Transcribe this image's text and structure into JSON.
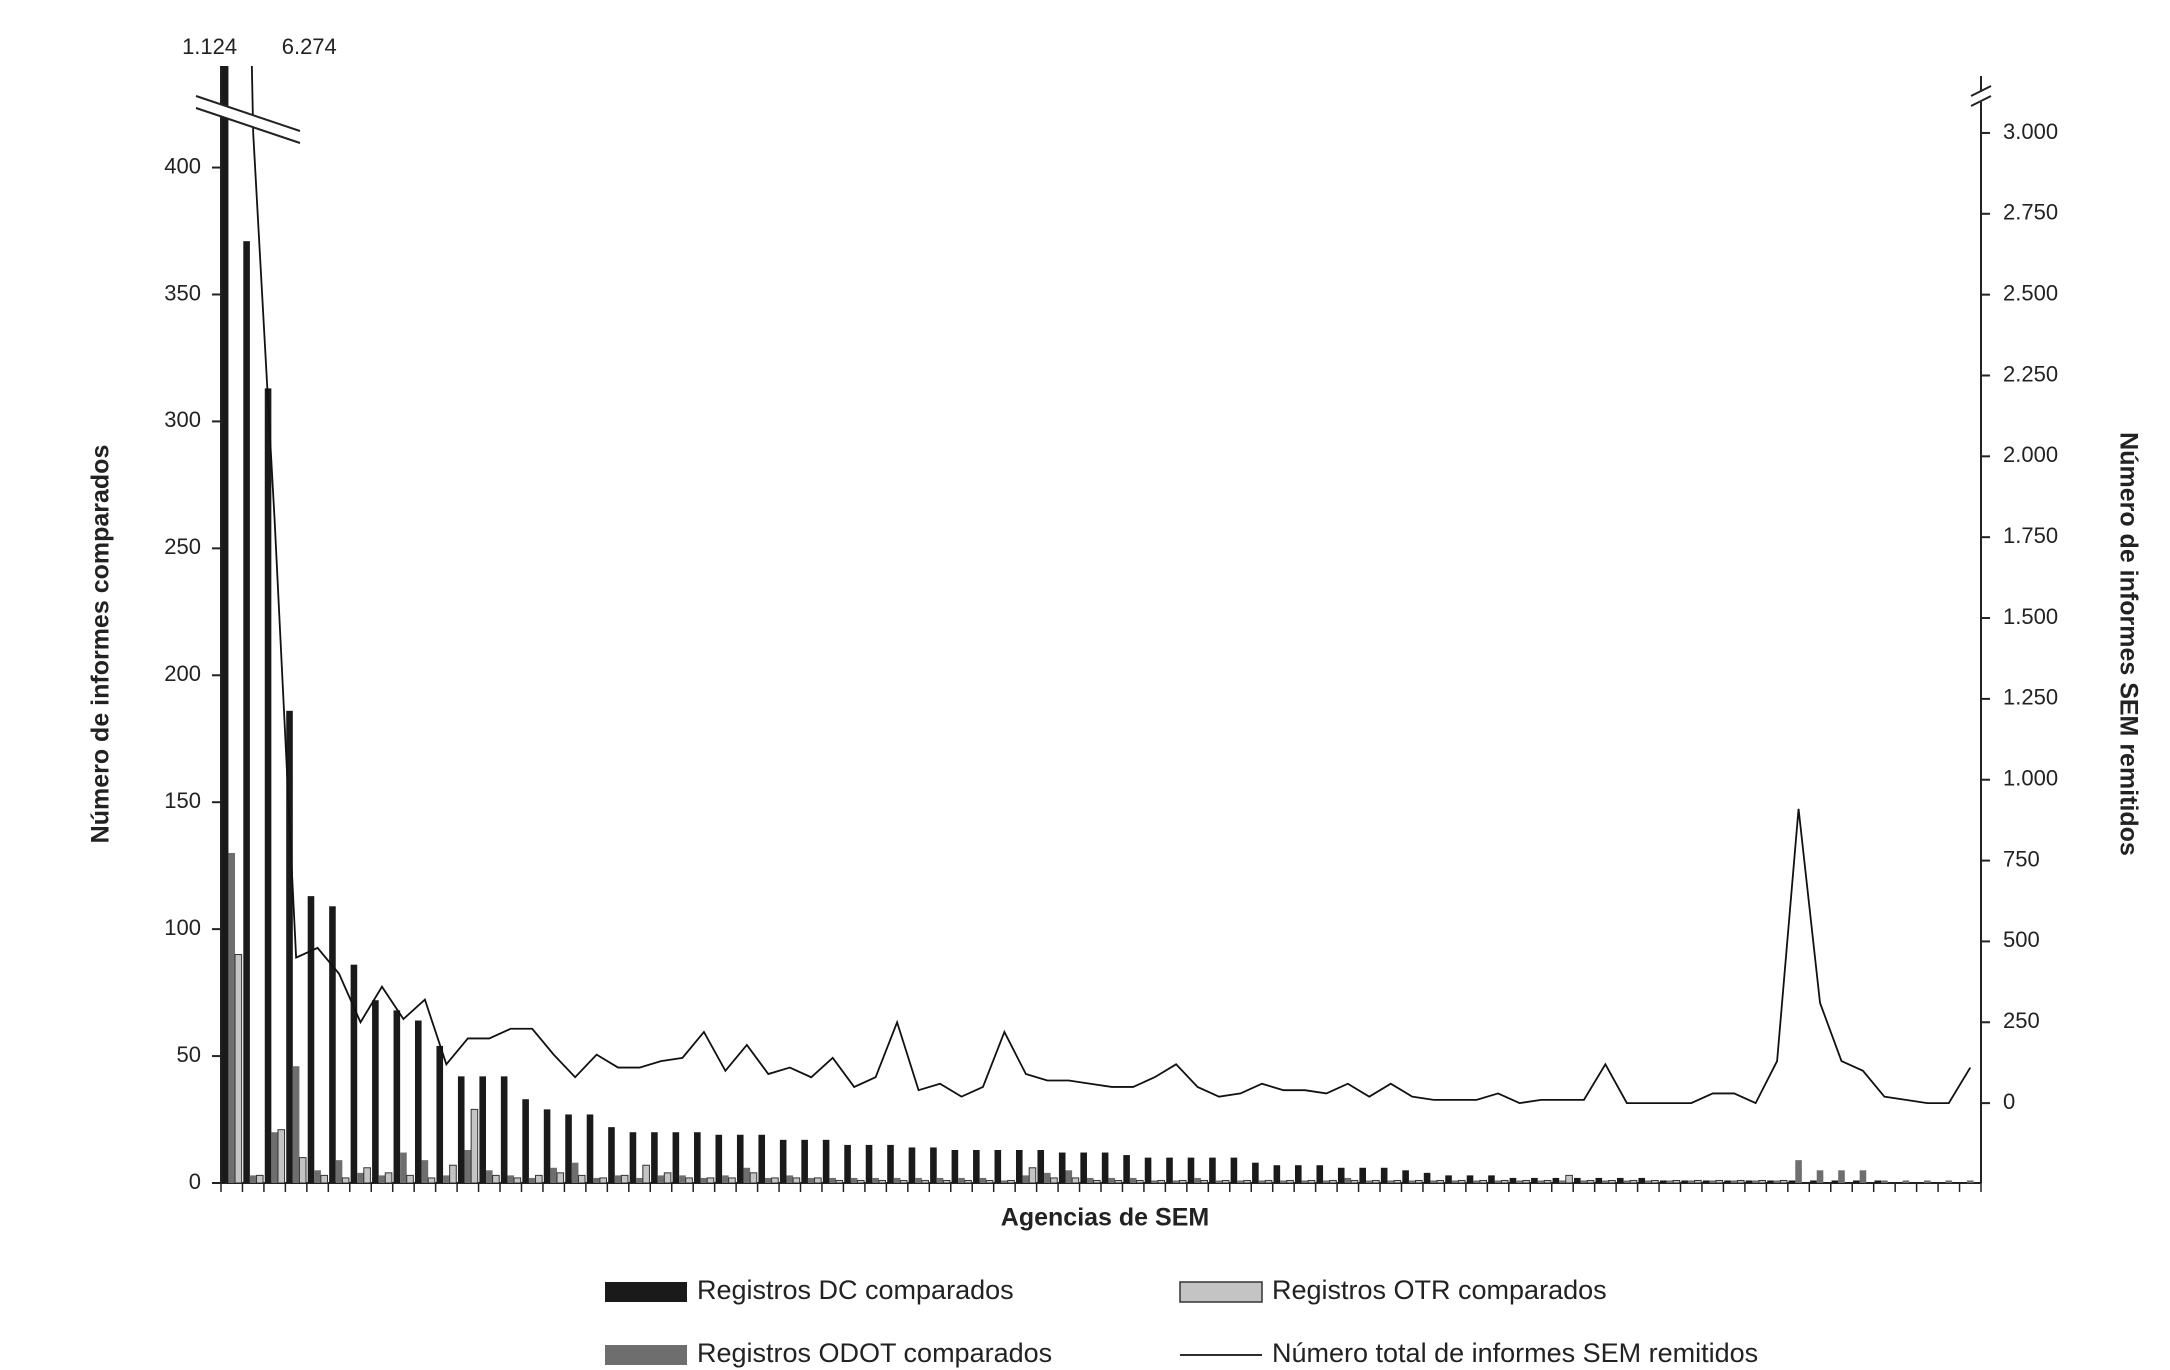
{
  "chart_data": {
    "type": "bar",
    "x_label": "Agencias de SEM",
    "y_label": "Número de informes comparados",
    "y2_label": "Número de informes SEM remitidos",
    "categories": [
      null,
      null,
      null,
      null,
      null,
      null,
      null,
      null,
      null,
      null,
      null,
      null,
      null,
      null,
      null,
      null,
      null,
      null,
      null,
      null,
      null,
      null,
      null,
      null,
      null,
      null,
      null,
      null,
      null,
      null,
      null,
      null,
      null,
      null,
      null,
      null,
      null,
      null,
      null,
      null,
      null,
      null,
      null,
      null,
      null,
      null,
      null,
      null,
      null,
      null,
      null,
      null,
      null,
      null,
      null,
      null,
      null,
      null,
      null,
      null,
      null,
      null,
      null,
      null,
      null,
      null,
      null,
      null,
      null,
      null,
      null,
      null,
      null,
      null,
      null,
      null,
      null,
      null,
      null,
      null,
      null,
      null
    ],
    "ylim": [
      0,
      440
    ],
    "yticks": [
      0,
      50,
      100,
      150,
      200,
      250,
      300,
      350,
      400
    ],
    "y2lim": [
      -247,
      3207
    ],
    "y2ticks": [
      0,
      250,
      500,
      750,
      {
        "value": 1000,
        "label": "1.000"
      },
      {
        "value": 1250,
        "label": "1.250"
      },
      {
        "value": 1500,
        "label": "1.500"
      },
      {
        "value": 1750,
        "label": "1.750"
      },
      {
        "value": 2000,
        "label": "2.000"
      },
      {
        "value": 2250,
        "label": "2.250"
      },
      {
        "value": 2500,
        "label": "2.500"
      },
      {
        "value": 2750,
        "label": "2.750"
      },
      {
        "value": 3000,
        "label": "3.000"
      }
    ],
    "grid": false,
    "series": [
      {
        "name": "Registros DC comparados",
        "color": "#1a1a1a",
        "type": "bar",
        "values": [
          1124,
          371,
          313,
          186,
          113,
          109,
          86,
          72,
          68,
          64,
          54,
          42,
          42,
          42,
          33,
          29,
          27,
          27,
          22,
          20,
          20,
          20,
          20,
          19,
          19,
          19,
          17,
          17,
          17,
          15,
          15,
          15,
          14,
          14,
          13,
          13,
          13,
          13,
          13,
          12,
          12,
          12,
          11,
          10,
          10,
          10,
          10,
          10,
          8,
          7,
          7,
          7,
          6,
          6,
          6,
          5,
          4,
          3,
          3,
          3,
          2,
          2,
          2,
          2,
          2,
          2,
          2,
          1,
          1,
          1,
          1,
          1,
          1,
          1,
          1,
          1,
          1,
          1,
          0,
          0,
          0,
          0
        ],
        "value_labels": [
          "1.124",
          null,
          null,
          null,
          null,
          null,
          null,
          null,
          null,
          null,
          null,
          null,
          null,
          null,
          null,
          null,
          null,
          null,
          null,
          null,
          null,
          null,
          null,
          null,
          null,
          null,
          null,
          null,
          null,
          null,
          null,
          null,
          null,
          null,
          null,
          null,
          null,
          null,
          null,
          null,
          null,
          null,
          null,
          null,
          null,
          null,
          null,
          null,
          null,
          null,
          null,
          null,
          null,
          null,
          null,
          null,
          null,
          null,
          null,
          null,
          null,
          null,
          null,
          null,
          null,
          null,
          null,
          null,
          null,
          null,
          null,
          null,
          null,
          null,
          null,
          null,
          null,
          null,
          null,
          null,
          null,
          null
        ]
      },
      {
        "name": "Registros ODOT comparados",
        "color": "#6e6e6e",
        "type": "bar",
        "values": [
          130,
          3,
          20,
          46,
          5,
          9,
          4,
          3,
          12,
          9,
          3,
          13,
          5,
          3,
          2,
          6,
          8,
          2,
          3,
          2,
          3,
          3,
          2,
          3,
          6,
          2,
          3,
          2,
          2,
          2,
          2,
          2,
          2,
          2,
          2,
          2,
          1,
          3,
          4,
          5,
          2,
          2,
          2,
          1,
          1,
          2,
          1,
          1,
          1,
          1,
          1,
          1,
          2,
          1,
          1,
          1,
          1,
          1,
          1,
          1,
          1,
          1,
          1,
          1,
          1,
          1,
          1,
          1,
          1,
          1,
          1,
          1,
          1,
          9,
          5,
          5,
          5,
          1,
          1,
          1,
          1,
          1
        ]
      },
      {
        "name": "Registros OTR comparados",
        "color": "#c4c4c4",
        "type": "bar",
        "values": [
          90,
          3,
          21,
          10,
          3,
          2,
          6,
          4,
          3,
          2,
          7,
          29,
          3,
          2,
          3,
          4,
          3,
          2,
          3,
          7,
          4,
          2,
          2,
          2,
          4,
          2,
          2,
          2,
          1,
          1,
          1,
          1,
          1,
          1,
          1,
          1,
          1,
          6,
          2,
          2,
          1,
          1,
          1,
          1,
          1,
          1,
          1,
          1,
          1,
          1,
          1,
          1,
          1,
          1,
          1,
          1,
          1,
          1,
          1,
          1,
          1,
          1,
          3,
          1,
          1,
          1,
          1,
          1,
          1,
          1,
          1,
          1,
          1,
          0,
          0,
          0,
          0,
          0,
          0,
          0,
          0,
          0
        ]
      },
      {
        "name": "Número total de informes SEM remitidos",
        "color": "#111111",
        "type": "line",
        "axis": "y2",
        "values": [
          6274,
          3000,
          1800,
          450,
          480,
          400,
          250,
          360,
          260,
          320,
          120,
          200,
          200,
          230,
          230,
          150,
          80,
          150,
          110,
          110,
          130,
          140,
          220,
          100,
          180,
          90,
          110,
          80,
          140,
          50,
          80,
          250,
          40,
          60,
          20,
          50,
          220,
          90,
          70,
          70,
          60,
          50,
          50,
          80,
          120,
          50,
          20,
          30,
          60,
          40,
          40,
          30,
          60,
          20,
          60,
          20,
          10,
          10,
          10,
          30,
          0,
          10,
          10,
          10,
          120,
          0,
          0,
          0,
          0,
          30,
          30,
          0,
          130,
          910,
          310,
          130,
          100,
          20,
          10,
          0,
          0,
          110
        ],
        "value_labels": [
          "6.274",
          null,
          null,
          null,
          null,
          null,
          null,
          null,
          null,
          null,
          null,
          null,
          null,
          null,
          null,
          null,
          null,
          null,
          null,
          null,
          null,
          null,
          null,
          null,
          null,
          null,
          null,
          null,
          null,
          null,
          null,
          null,
          null,
          null,
          null,
          null,
          null,
          null,
          null,
          null,
          null,
          null,
          null,
          null,
          null,
          null,
          null,
          null,
          null,
          null,
          null,
          null,
          null,
          null,
          null,
          null,
          null,
          null,
          null,
          null,
          null,
          null,
          null,
          null,
          null,
          null,
          null,
          null,
          null,
          null,
          null,
          null,
          null,
          null,
          null,
          null,
          null,
          null,
          null,
          null,
          null,
          null
        ]
      }
    ]
  }
}
